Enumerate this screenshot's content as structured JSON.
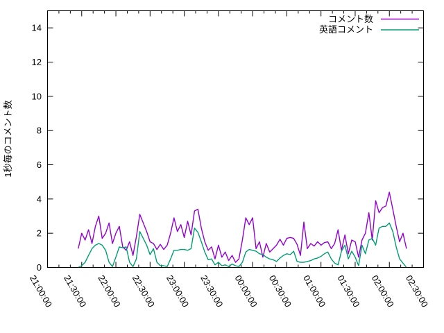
{
  "chart_data": {
    "type": "line",
    "title": "",
    "xlabel": "",
    "ylabel": "1秒毎のコメント数",
    "grid": false,
    "legend": {
      "position": "top-right-inside"
    },
    "x_axis": {
      "tick_labels": [
        "21:00:00",
        "21:30:00",
        "22:00:00",
        "22:30:00",
        "23:00:00",
        "23:30:00",
        "00:00:00",
        "00:30:00",
        "01:00:00",
        "01:30:00",
        "02:00:00",
        "02:30:00"
      ],
      "tick_minutes": [
        0,
        30,
        60,
        90,
        120,
        150,
        180,
        210,
        240,
        270,
        300,
        330
      ],
      "minor_tick_every_minutes": 10,
      "range_minutes": [
        0,
        330
      ],
      "labels_rotated": true
    },
    "y_axis": {
      "ticks": [
        0,
        2,
        4,
        6,
        8,
        10,
        12,
        14
      ],
      "range": [
        0,
        15
      ]
    },
    "x_start_minute": 27,
    "x_step_minutes": 3,
    "series": [
      {
        "name": "コメント数",
        "color": "#9400d3",
        "values": [
          1.1,
          2.0,
          1.6,
          2.2,
          1.4,
          2.4,
          3.0,
          1.7,
          2.0,
          2.6,
          1.4,
          2.0,
          2.4,
          1.2,
          1.0,
          1.5,
          0.7,
          1.8,
          3.1,
          2.6,
          2.1,
          1.5,
          1.4,
          1.05,
          1.35,
          1.05,
          1.3,
          2.0,
          2.9,
          2.1,
          2.5,
          1.75,
          2.7,
          1.9,
          3.3,
          3.4,
          2.3,
          1.5,
          1.0,
          1.2,
          0.5,
          1.3,
          0.6,
          0.9,
          0.4,
          0.7,
          0.3,
          0.5,
          1.6,
          2.9,
          2.5,
          2.9,
          1.1,
          1.5,
          0.6,
          1.4,
          0.9,
          1.1,
          1.3,
          1.65,
          1.3,
          1.7,
          1.75,
          1.7,
          1.35,
          0.7,
          2.65,
          1.1,
          1.4,
          1.25,
          1.5,
          1.3,
          1.45,
          1.5,
          1.1,
          1.4,
          2.2,
          1.0,
          1.9,
          0.8,
          1.6,
          1.5,
          0.6,
          1.6,
          2.0,
          3.2,
          1.6,
          3.9,
          3.2,
          3.5,
          3.6,
          4.4,
          3.4,
          2.4,
          1.5,
          2.0,
          1.1
        ]
      },
      {
        "name": "英語コメント",
        "color": "#009e73",
        "values": [
          0.0,
          0.1,
          0.3,
          0.7,
          1.1,
          1.3,
          1.4,
          1.3,
          1.0,
          0.3,
          0.05,
          0.6,
          1.2,
          1.15,
          1.2,
          0.3,
          0.05,
          0.5,
          2.1,
          1.7,
          1.3,
          0.75,
          1.1,
          0.3,
          0.1,
          0.1,
          0.05,
          0.5,
          1.0,
          1.0,
          1.05,
          1.05,
          1.0,
          1.1,
          2.3,
          2.05,
          1.5,
          0.9,
          0.45,
          0.5,
          0.15,
          0.3,
          0.1,
          0.15,
          0.05,
          0.2,
          0.1,
          0.05,
          0.3,
          0.9,
          1.05,
          1.0,
          0.95,
          0.8,
          0.75,
          0.6,
          0.5,
          0.45,
          0.35,
          0.55,
          0.7,
          0.8,
          0.75,
          0.95,
          0.35,
          0.3,
          0.3,
          0.35,
          0.4,
          0.5,
          0.55,
          0.65,
          0.8,
          0.9,
          0.5,
          0.25,
          0.15,
          0.95,
          1.3,
          0.5,
          0.95,
          0.6,
          0.1,
          1.3,
          0.8,
          1.6,
          1.7,
          1.3,
          2.3,
          2.4,
          2.4,
          2.6,
          2.1,
          1.2,
          0.5,
          0.25,
          0.0
        ]
      }
    ]
  },
  "colors": {
    "background": "#ffffff",
    "axis": "#000000",
    "text": "#000000",
    "series1": "#9400d3",
    "series2": "#009e73"
  }
}
